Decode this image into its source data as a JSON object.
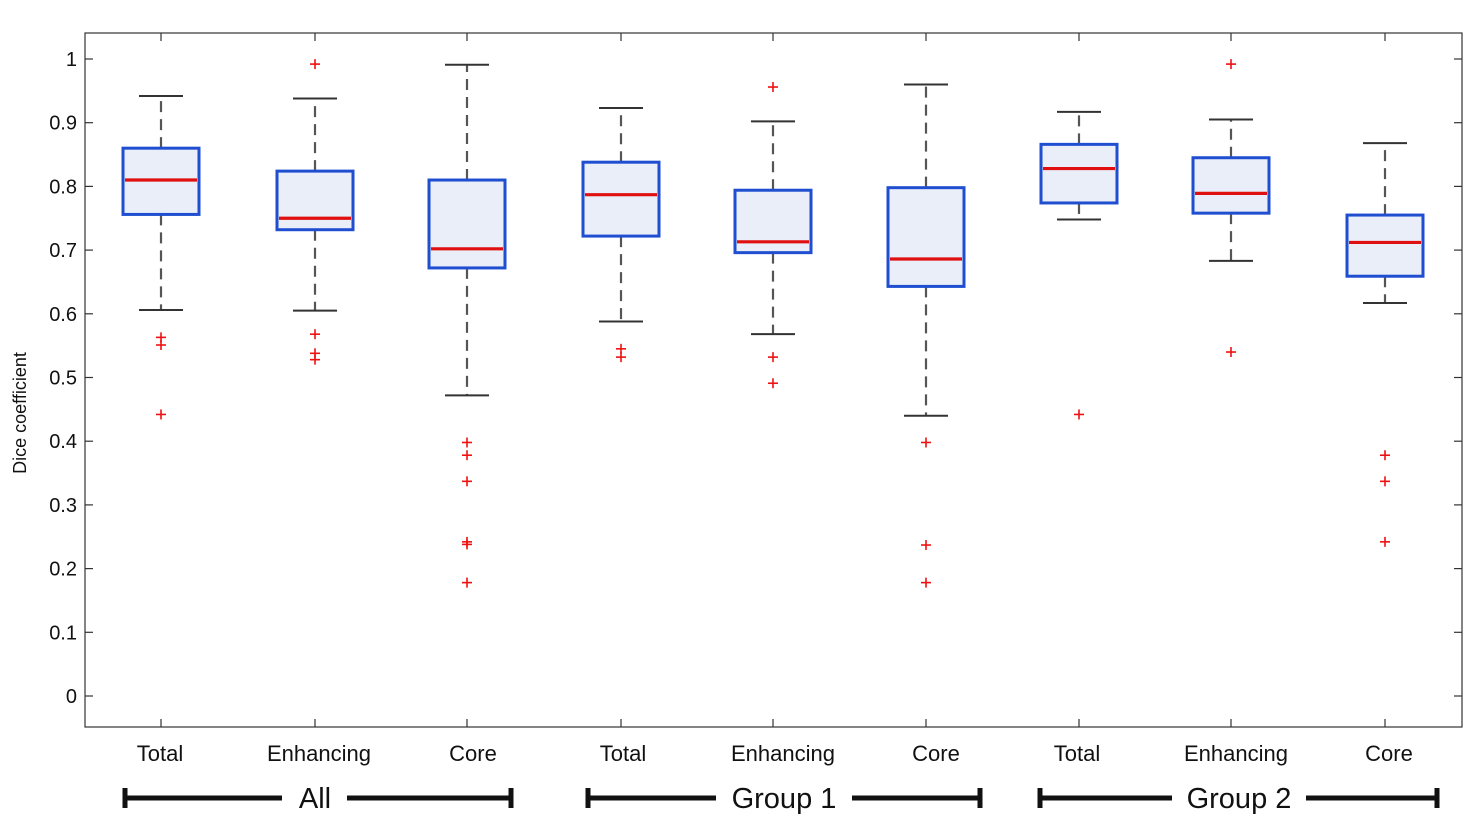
{
  "chart_data": {
    "type": "boxplot",
    "ylabel": "Dice coefficient",
    "ylim": [
      -0.05,
      1.04
    ],
    "yticks": [
      0,
      0.1,
      0.2,
      0.3,
      0.4,
      0.5,
      0.6,
      0.7,
      0.8,
      0.9,
      1
    ],
    "ytick_labels": [
      "0",
      "0.1",
      "0.2",
      "0.3",
      "0.4",
      "0.5",
      "0.6",
      "0.7",
      "0.8",
      "0.9",
      "1"
    ],
    "grid": false,
    "colors": {
      "box": "#1f4fd0",
      "box_fill": "#e9eef8",
      "median": "#e01010",
      "whisker": "#555555",
      "outlier": "#ee1111"
    },
    "groups": [
      {
        "label": "All",
        "start": 0,
        "end": 2
      },
      {
        "label": "Group 1",
        "start": 3,
        "end": 5
      },
      {
        "label": "Group 2",
        "start": 6,
        "end": 8
      }
    ],
    "boxes": [
      {
        "category": "Total",
        "q1": 0.756,
        "median": 0.81,
        "q3": 0.86,
        "whisker_low": 0.606,
        "whisker_high": 0.942,
        "outliers": [
          0.563,
          0.551,
          0.442
        ]
      },
      {
        "category": "Enhancing",
        "q1": 0.732,
        "median": 0.75,
        "q3": 0.824,
        "whisker_low": 0.605,
        "whisker_high": 0.938,
        "outliers": [
          0.992,
          0.568,
          0.538,
          0.528
        ]
      },
      {
        "category": "Core",
        "q1": 0.672,
        "median": 0.702,
        "q3": 0.81,
        "whisker_low": 0.472,
        "whisker_high": 0.991,
        "outliers": [
          0.398,
          0.378,
          0.337,
          0.242,
          0.238,
          0.178
        ]
      },
      {
        "category": "Total",
        "q1": 0.722,
        "median": 0.787,
        "q3": 0.838,
        "whisker_low": 0.588,
        "whisker_high": 0.923,
        "outliers": [
          0.545,
          0.532
        ]
      },
      {
        "category": "Enhancing",
        "q1": 0.696,
        "median": 0.713,
        "q3": 0.794,
        "whisker_low": 0.568,
        "whisker_high": 0.902,
        "outliers": [
          0.956,
          0.532,
          0.491
        ]
      },
      {
        "category": "Core",
        "q1": 0.643,
        "median": 0.686,
        "q3": 0.798,
        "whisker_low": 0.44,
        "whisker_high": 0.96,
        "outliers": [
          0.398,
          0.237,
          0.178
        ]
      },
      {
        "category": "Total",
        "q1": 0.774,
        "median": 0.828,
        "q3": 0.866,
        "whisker_low": 0.748,
        "whisker_high": 0.917,
        "outliers": [
          0.442
        ]
      },
      {
        "category": "Enhancing",
        "q1": 0.758,
        "median": 0.789,
        "q3": 0.845,
        "whisker_low": 0.683,
        "whisker_high": 0.905,
        "outliers": [
          0.992,
          0.54
        ]
      },
      {
        "category": "Core",
        "q1": 0.659,
        "median": 0.712,
        "q3": 0.755,
        "whisker_low": 0.617,
        "whisker_high": 0.868,
        "outliers": [
          0.378,
          0.337,
          0.242
        ]
      }
    ]
  }
}
